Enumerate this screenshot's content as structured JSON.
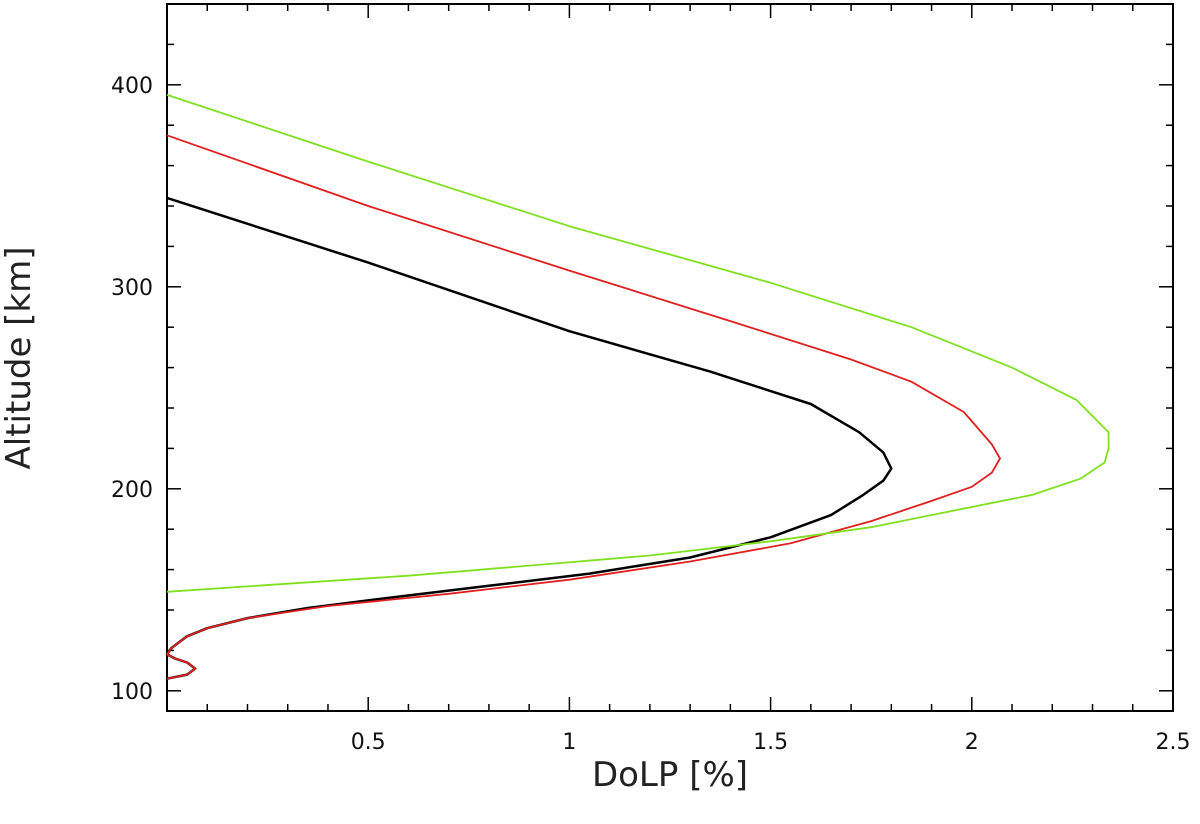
{
  "chart_data": {
    "type": "line",
    "xlabel": "DoLP [%]",
    "ylabel": "Altitude [km]",
    "xlim": [
      0,
      2.5
    ],
    "ylim": [
      90,
      440
    ],
    "x_ticks": [
      0.5,
      1,
      1.5,
      2,
      2.5
    ],
    "x_tick_labels": [
      "0.5",
      "1",
      "1.5",
      "2",
      "2.5"
    ],
    "y_ticks": [
      100,
      200,
      300,
      400
    ],
    "y_tick_labels": [
      "100",
      "200",
      "300",
      "400"
    ],
    "grid": false,
    "legend": "none",
    "series": [
      {
        "color": "#000000",
        "points": [
          [
            0.0,
            106
          ],
          [
            0.05,
            108
          ],
          [
            0.07,
            111
          ],
          [
            0.05,
            114
          ],
          [
            0.02,
            116
          ],
          [
            0.0,
            118
          ],
          [
            0.01,
            121
          ],
          [
            0.03,
            124
          ],
          [
            0.05,
            127
          ],
          [
            0.1,
            131
          ],
          [
            0.2,
            136
          ],
          [
            0.35,
            141
          ],
          [
            0.55,
            146
          ],
          [
            0.8,
            152
          ],
          [
            1.05,
            158
          ],
          [
            1.3,
            166
          ],
          [
            1.5,
            176
          ],
          [
            1.65,
            187
          ],
          [
            1.73,
            197
          ],
          [
            1.78,
            204
          ],
          [
            1.8,
            210
          ],
          [
            1.78,
            218
          ],
          [
            1.72,
            228
          ],
          [
            1.6,
            242
          ],
          [
            1.35,
            258
          ],
          [
            1.0,
            278
          ],
          [
            0.5,
            312
          ],
          [
            0.0,
            344
          ]
        ]
      },
      {
        "color": "#e02020",
        "points": [
          [
            0.0,
            106
          ],
          [
            0.05,
            108
          ],
          [
            0.07,
            111
          ],
          [
            0.05,
            114
          ],
          [
            0.02,
            116
          ],
          [
            0.0,
            118
          ],
          [
            0.01,
            121
          ],
          [
            0.03,
            124
          ],
          [
            0.05,
            127
          ],
          [
            0.1,
            131
          ],
          [
            0.2,
            136
          ],
          [
            0.4,
            142
          ],
          [
            0.7,
            148
          ],
          [
            1.0,
            155
          ],
          [
            1.3,
            164
          ],
          [
            1.55,
            173
          ],
          [
            1.75,
            184
          ],
          [
            1.9,
            194
          ],
          [
            2.0,
            201
          ],
          [
            2.05,
            208
          ],
          [
            2.07,
            215
          ],
          [
            2.05,
            222
          ],
          [
            1.98,
            238
          ],
          [
            1.85,
            253
          ],
          [
            1.7,
            264
          ],
          [
            1.4,
            283
          ],
          [
            1.0,
            308
          ],
          [
            0.5,
            340
          ],
          [
            0.0,
            375
          ]
        ]
      },
      {
        "color": "#80e020",
        "points": [
          [
            0.0,
            149
          ],
          [
            0.3,
            153
          ],
          [
            0.6,
            157
          ],
          [
            0.9,
            162
          ],
          [
            1.2,
            167
          ],
          [
            1.5,
            174
          ],
          [
            1.75,
            181
          ],
          [
            1.95,
            189
          ],
          [
            2.15,
            197
          ],
          [
            2.27,
            205
          ],
          [
            2.33,
            213
          ],
          [
            2.34,
            220
          ],
          [
            2.34,
            228
          ],
          [
            2.26,
            244
          ],
          [
            2.1,
            260
          ],
          [
            1.85,
            280
          ],
          [
            1.5,
            302
          ],
          [
            1.0,
            330
          ],
          [
            0.5,
            362
          ],
          [
            0.0,
            395
          ]
        ]
      }
    ]
  }
}
